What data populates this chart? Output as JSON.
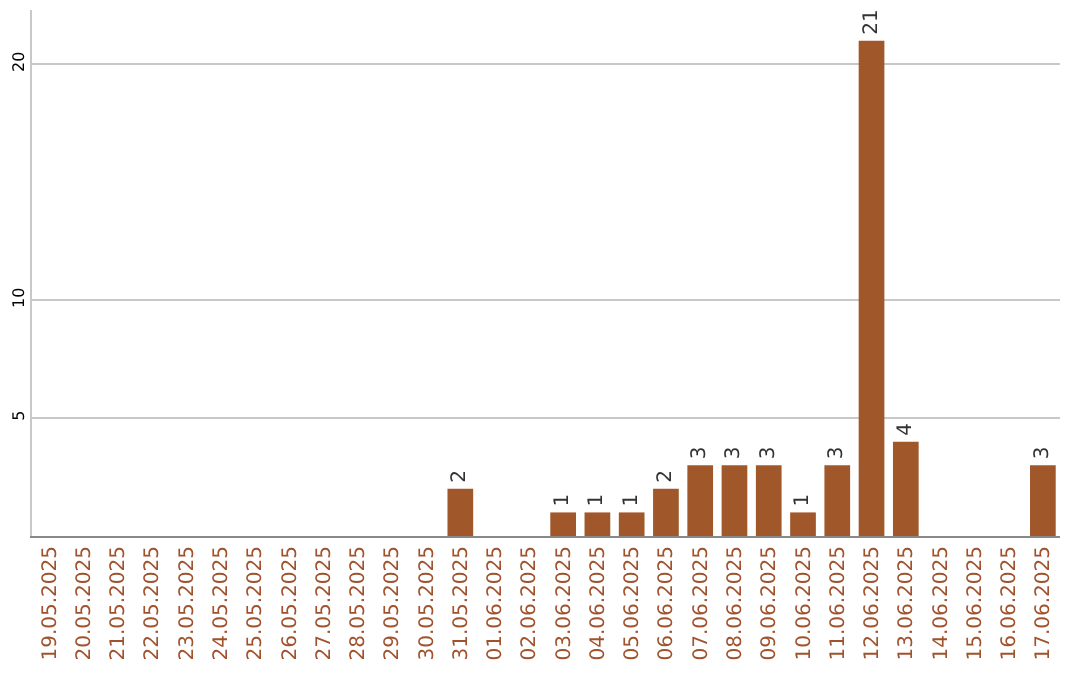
{
  "chart_data": {
    "type": "bar",
    "categories": [
      "19.05.2025",
      "20.05.2025",
      "21.05.2025",
      "22.05.2025",
      "23.05.2025",
      "24.05.2025",
      "25.05.2025",
      "26.05.2025",
      "27.05.2025",
      "28.05.2025",
      "29.05.2025",
      "30.05.2025",
      "31.05.2025",
      "01.06.2025",
      "02.06.2025",
      "03.06.2025",
      "04.06.2025",
      "05.06.2025",
      "06.06.2025",
      "07.06.2025",
      "08.06.2025",
      "09.06.2025",
      "10.06.2025",
      "11.06.2025",
      "12.06.2025",
      "13.06.2025",
      "14.06.2025",
      "15.06.2025",
      "16.06.2025",
      "17.06.2025"
    ],
    "values": [
      0,
      0,
      0,
      0,
      0,
      0,
      0,
      0,
      0,
      0,
      0,
      0,
      2,
      0,
      0,
      1,
      1,
      1,
      2,
      3,
      3,
      3,
      1,
      3,
      21,
      4,
      0,
      0,
      0,
      3
    ],
    "value_labels": [
      null,
      null,
      null,
      null,
      null,
      null,
      null,
      null,
      null,
      null,
      null,
      null,
      "2",
      null,
      null,
      "1",
      "1",
      "1",
      "2",
      "3",
      "3",
      "3",
      "1",
      "3",
      "21",
      "4",
      null,
      null,
      null,
      "3"
    ],
    "color": "#a0572a",
    "ylim": [
      0,
      22.3
    ],
    "yticks": [
      5,
      10,
      20
    ],
    "grid": "y",
    "legend": false
  }
}
